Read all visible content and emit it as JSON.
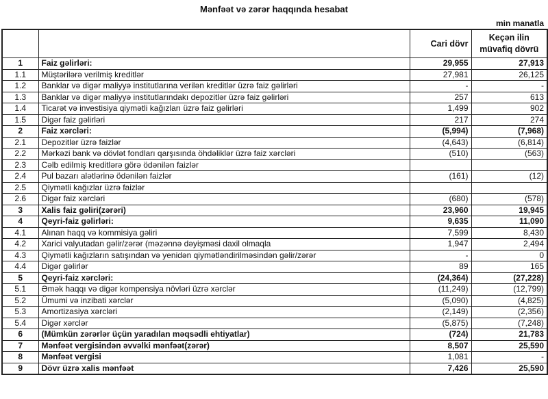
{
  "title": "Mənfəət və zərər haqqında hesabat",
  "unit": "min manatla",
  "header": {
    "current": "Cari dövr",
    "previous_line1": "Keçən ilin",
    "previous_line2": "müvafiq dövrü"
  },
  "rows": [
    {
      "num": "1",
      "label": "Faiz gəlirləri:",
      "current": "29,955",
      "previous": "27,913",
      "bold": true,
      "bold_values": true
    },
    {
      "num": "1.1",
      "label": "Müştərilərə verilmiş kreditlər",
      "current": "27,981",
      "previous": "26,125"
    },
    {
      "num": "1.2",
      "label": "Banklar və digər maliyyə institutlarına verilən kreditlər üzrə faiz gəlirləri",
      "current": "-",
      "previous": "-"
    },
    {
      "num": "1.3",
      "label": "Banklar və digər maliyyə institutlarındakı depozitlər üzrə faiz gəlirləri",
      "current": "257",
      "previous": "613"
    },
    {
      "num": "1.4",
      "label": "Ticarət və investisiya qiymətli kağızları üzrə faiz gəlirləri",
      "current": "1,499",
      "previous": "902"
    },
    {
      "num": "1.5",
      "label": "Digər faiz gəlirləri",
      "current": "217",
      "previous": "274"
    },
    {
      "num": "2",
      "label": "Faiz xərcləri:",
      "current": "(5,994)",
      "previous": "(7,968)",
      "bold": true,
      "bold_values": true
    },
    {
      "num": "2.1",
      "label": "Depozitlər üzrə faizlər",
      "current": "(4,643)",
      "previous": "(6,814)"
    },
    {
      "num": "2.2",
      "label": "Mərkəzi bank və dövlət fondları qarşısında öhdəliklər üzrə faiz xərcləri",
      "current": "(510)",
      "previous": "(563)"
    },
    {
      "num": "2.3",
      "label": "Cəlb edilmiş kreditlərə görə ödənilən faizlər",
      "current": "",
      "previous": ""
    },
    {
      "num": "2.4",
      "label": "Pul bazarı alətlərinə ödənilən faizlər",
      "current": "(161)",
      "previous": "(12)"
    },
    {
      "num": "2.5",
      "label": "Qiymətli kağızlar üzrə faizlər",
      "current": "",
      "previous": ""
    },
    {
      "num": "2.6",
      "label": "Digər faiz xərcləri",
      "current": "(680)",
      "previous": "(578)"
    },
    {
      "num": "3",
      "label": "Xalis faiz gəliri(zərəri)",
      "current": "23,960",
      "previous": "19,945",
      "bold": true,
      "bold_values": true
    },
    {
      "num": "4",
      "label": "Qeyri-faiz gəlirləri:",
      "current": "9,635",
      "previous": "11,090",
      "bold": true,
      "bold_values": true
    },
    {
      "num": "4.1",
      "label": "Alınan haqq və kommisiya gəliri",
      "current": "7,599",
      "previous": "8,430"
    },
    {
      "num": "4.2",
      "label": "Xarici valyutadan gəlir/zərər (məzənnə dəyişməsi daxil olmaqla",
      "current": "1,947",
      "previous": "2,494"
    },
    {
      "num": "4.3",
      "label": "Qiymətli kağızların satışından və yenidən qiymətləndirilməsindən gəlir/zərər",
      "current": "-",
      "previous": "0"
    },
    {
      "num": "4.4",
      "label": "Digər gəlirlər",
      "current": "89",
      "previous": "165"
    },
    {
      "num": "5",
      "label": "Qeyri-faiz xərcləri:",
      "current": "(24,364)",
      "previous": "(27,228)",
      "bold": true,
      "bold_values": true
    },
    {
      "num": "5.1",
      "label": "Əmək haqqı və digər kompensiya növləri üzrə xərclər",
      "current": "(11,249)",
      "previous": "(12,799)"
    },
    {
      "num": "5.2",
      "label": "Ümumi və inzibati xərclər",
      "current": "(5,090)",
      "previous": "(4,825)"
    },
    {
      "num": "5.3",
      "label": "Amortizasiya xərcləri",
      "current": "(2,149)",
      "previous": "(2,356)"
    },
    {
      "num": "5.4",
      "label": "Digər xərclər",
      "current": "(5,875)",
      "previous": "(7,248)"
    },
    {
      "num": "6",
      "label": "(Mümkün zərərlər üçün yaradılan məqsədli ehtiyatlar)",
      "current": "(724)",
      "previous": "21,783",
      "bold": true,
      "bold_values": true
    },
    {
      "num": "7",
      "label": "Mənfəət vergisindən əvvəlki mənfəət(zərər)",
      "current": "8,507",
      "previous": "25,590",
      "bold": true,
      "bold_values": true
    },
    {
      "num": "8",
      "label": "Mənfəət vergisi",
      "current": "1,081",
      "previous": "-",
      "bold": true,
      "bold_values": false
    },
    {
      "num": "9",
      "label": "Dövr üzrə xalis mənfəət",
      "current": "7,426",
      "previous": "25,590",
      "bold": true,
      "bold_values": true
    }
  ]
}
